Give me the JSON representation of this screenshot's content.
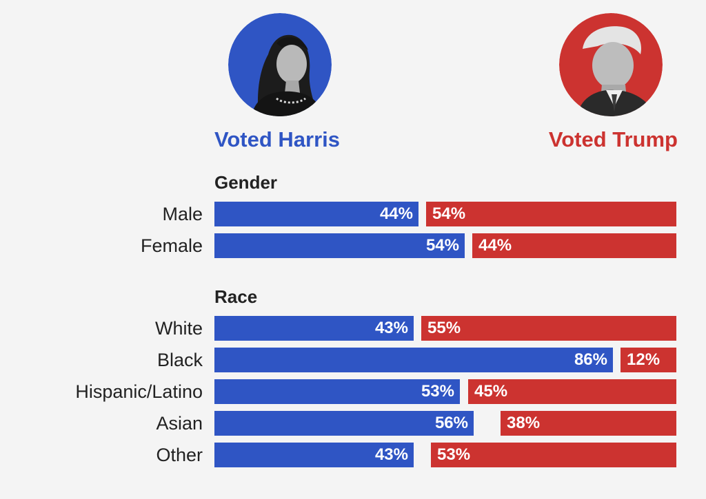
{
  "colors": {
    "harris": "#2f55c4",
    "trump": "#cc3330",
    "text": "#222222",
    "background": "#f4f4f4"
  },
  "candidates": {
    "harris": {
      "label": "Voted Harris"
    },
    "trump": {
      "label": "Voted Trump"
    }
  },
  "chart_data": {
    "type": "bar",
    "orientation": "horizontal",
    "stacked": "diverging",
    "title": "",
    "xlim": [
      0,
      100
    ],
    "series": [
      {
        "name": "Voted Harris",
        "color": "#2f55c4"
      },
      {
        "name": "Voted Trump",
        "color": "#cc3330"
      }
    ],
    "groups": [
      {
        "title": "Gender",
        "rows": [
          {
            "label": "Male",
            "harris": 44,
            "trump": 54
          },
          {
            "label": "Female",
            "harris": 54,
            "trump": 44
          }
        ]
      },
      {
        "title": "Race",
        "rows": [
          {
            "label": "White",
            "harris": 43,
            "trump": 55
          },
          {
            "label": "Black",
            "harris": 86,
            "trump": 12
          },
          {
            "label": "Hispanic/Latino",
            "harris": 53,
            "trump": 45
          },
          {
            "label": "Asian",
            "harris": 56,
            "trump": 38
          },
          {
            "label": "Other",
            "harris": 43,
            "trump": 53
          }
        ]
      }
    ]
  }
}
